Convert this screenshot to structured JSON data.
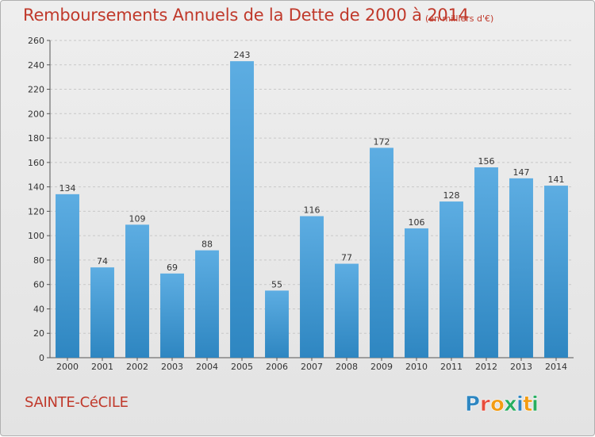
{
  "title": "Remboursements Annuels de la Dette de 2000 à 2014",
  "subtitle": "(en milliers d'€)",
  "commune": "SAINTE-CéCILE",
  "logo": {
    "text": "Proxiti",
    "colors": [
      "#2e86c1",
      "#e74c3c",
      "#f39c12",
      "#27ae60",
      "#2e86c1",
      "#f39c12",
      "#27ae60"
    ]
  },
  "colors": {
    "bar_top": "#5dade2",
    "bar_bottom": "#2e86c1",
    "title": "#c0392b"
  },
  "chart_data": {
    "type": "bar",
    "categories": [
      "2000",
      "2001",
      "2002",
      "2003",
      "2004",
      "2005",
      "2006",
      "2007",
      "2008",
      "2009",
      "2010",
      "2011",
      "2012",
      "2013",
      "2014"
    ],
    "values": [
      134,
      74,
      109,
      69,
      88,
      243,
      55,
      116,
      77,
      172,
      106,
      128,
      156,
      147,
      141
    ],
    "ylim": [
      0,
      260
    ],
    "yticks": [
      0,
      20,
      40,
      60,
      80,
      100,
      120,
      140,
      160,
      180,
      200,
      220,
      240,
      260
    ],
    "grid": true,
    "title": "Remboursements Annuels de la Dette de 2000 à 2014",
    "subtitle": "(en milliers d'€)",
    "xlabel": "",
    "ylabel": ""
  }
}
